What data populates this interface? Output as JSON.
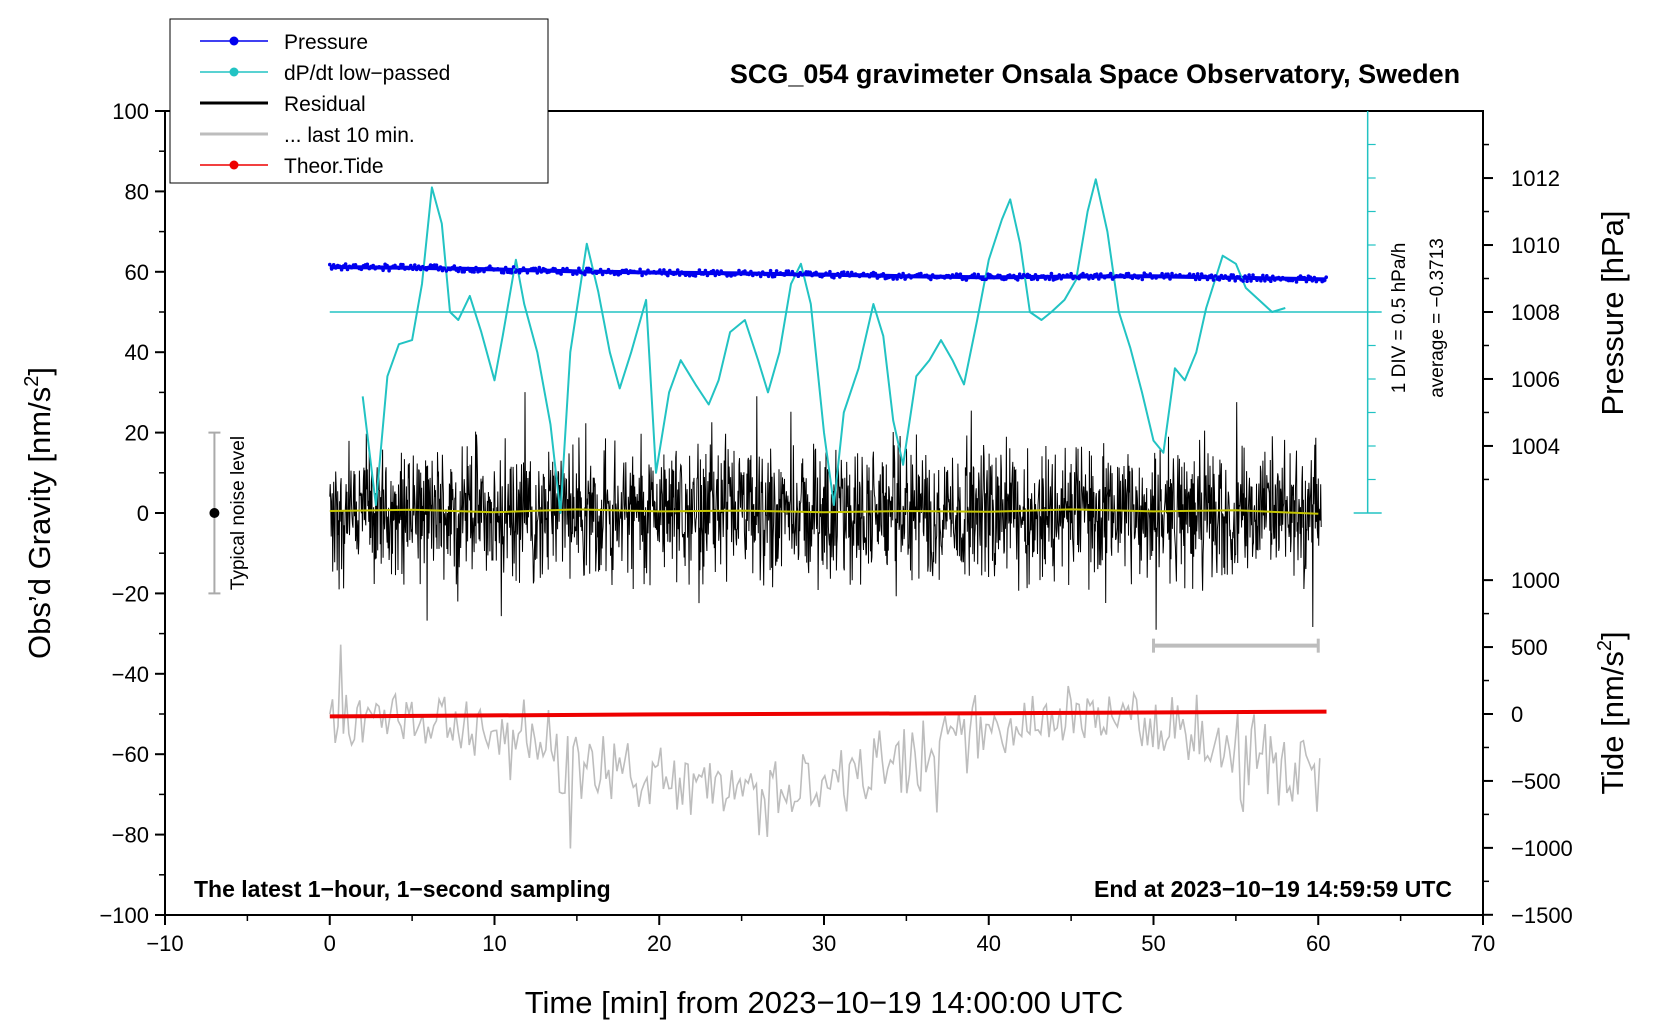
{
  "chart_data": {
    "type": "line",
    "title": "SCG_054 gravimeter Onsala Space Observatory, Sweden",
    "xlabel": "Time [min] from 2023−10−19 14:00:00 UTC",
    "ylabel_left": "Obs’d Gravity [nm/s²]",
    "ylabel_left_base": "Obs’d Gravity [nm/s",
    "ylabel_left_exp": "2",
    "ylabel_left_close": "]",
    "ylabel_right_pressure": "Pressure [hPa]",
    "ylabel_right_tide": "Tide [nm/s²]",
    "ylabel_right_tide_base": "Tide [nm/s",
    "ylabel_right_tide_exp": "2",
    "ylabel_right_tide_close": "]",
    "xlim": [
      -10,
      70
    ],
    "ylim_left": [
      -100,
      100
    ],
    "x_ticks": [
      "−10",
      "0",
      "10",
      "20",
      "30",
      "40",
      "50",
      "60",
      "70"
    ],
    "x_tick_values": [
      -10,
      0,
      10,
      20,
      30,
      40,
      50,
      60,
      70
    ],
    "y_ticks": [
      "100",
      "80",
      "60",
      "40",
      "20",
      "0",
      "−20",
      "−40",
      "−60",
      "−80",
      "−100"
    ],
    "y_tick_values": [
      100,
      80,
      60,
      40,
      20,
      0,
      -20,
      -40,
      -60,
      -80,
      -100
    ],
    "pressure_ticks": [
      "1012",
      "1010",
      "1008",
      "1006",
      "1004"
    ],
    "pressure_tick_values": [
      1012,
      1010,
      1008,
      1006,
      1004
    ],
    "pressure_axis": {
      "ref_hpa": 1008,
      "ref_left": 50,
      "left_per_hpa": 8.33
    },
    "tide_ticks": [
      "1000",
      "500",
      "0",
      "−500",
      "−1000",
      "−1500"
    ],
    "tide_tick_values": [
      1000,
      500,
      0,
      -500,
      -1000,
      -1500
    ],
    "tide_axis": {
      "ref_tide": 0,
      "ref_left": -50,
      "left_per_unit": 0.0333
    },
    "legend": [
      {
        "label": "Pressure",
        "color": "#0000ee",
        "marker": true
      },
      {
        "label": "dP/dt low−passed",
        "color": "#22c3c3",
        "marker": true
      },
      {
        "label": "Residual",
        "color": "#000000",
        "marker": false
      },
      {
        "label": "... last 10 min.",
        "color": "#bdbdbd",
        "marker": false
      },
      {
        "label": "Theor.Tide",
        "color": "#ee0000",
        "marker": true
      }
    ],
    "annotations": {
      "noise_label": "Typical noise level",
      "noise_range": [
        -20,
        20
      ],
      "dpdt_scale": "1 DIV = 0.5 hPa/h",
      "dpdt_average": "average = −0.3713",
      "bottom_left": "The latest 1−hour, 1−second sampling",
      "bottom_right": "End at 2023−10−19 14:59:59 UTC",
      "last10_bar_x": [
        50,
        60
      ]
    },
    "series": [
      {
        "name": "Pressure",
        "color": "#0000ee",
        "points": [
          [
            0,
            61.2
          ],
          [
            5,
            61.0
          ],
          [
            10,
            60.6
          ],
          [
            15,
            60.1
          ],
          [
            20,
            59.8
          ],
          [
            25,
            59.6
          ],
          [
            30,
            59.3
          ],
          [
            35,
            58.9
          ],
          [
            40,
            58.6
          ],
          [
            45,
            58.8
          ],
          [
            50,
            58.9
          ],
          [
            55,
            58.5
          ],
          [
            60.5,
            58.1
          ]
        ]
      },
      {
        "name": "dP/dt low-passed",
        "color": "#22c3c3",
        "points": [
          [
            2,
            29
          ],
          [
            2.8,
            2
          ],
          [
            3.5,
            34
          ],
          [
            4.2,
            42
          ],
          [
            5,
            43
          ],
          [
            5.6,
            57
          ],
          [
            6.2,
            81
          ],
          [
            6.8,
            72
          ],
          [
            7.3,
            50
          ],
          [
            7.8,
            48
          ],
          [
            8.5,
            54
          ],
          [
            9.2,
            45
          ],
          [
            10,
            33
          ],
          [
            10.5,
            44
          ],
          [
            11.3,
            63
          ],
          [
            11.8,
            52
          ],
          [
            12.6,
            40
          ],
          [
            13.4,
            22
          ],
          [
            14,
            0
          ],
          [
            14.6,
            40
          ],
          [
            15.6,
            67
          ],
          [
            16.3,
            55
          ],
          [
            17,
            40
          ],
          [
            17.6,
            31
          ],
          [
            18.3,
            40
          ],
          [
            19.2,
            53
          ],
          [
            19.8,
            10
          ],
          [
            20.6,
            30
          ],
          [
            21.3,
            38
          ],
          [
            22.2,
            32
          ],
          [
            23,
            27
          ],
          [
            23.6,
            33
          ],
          [
            24.3,
            45
          ],
          [
            25.2,
            48
          ],
          [
            26,
            38
          ],
          [
            26.6,
            30
          ],
          [
            27.3,
            40
          ],
          [
            28,
            57
          ],
          [
            28.6,
            62
          ],
          [
            29.2,
            52
          ],
          [
            30,
            20
          ],
          [
            30.6,
            2
          ],
          [
            31.2,
            25
          ],
          [
            32.1,
            36
          ],
          [
            33,
            52
          ],
          [
            33.6,
            44
          ],
          [
            34.2,
            23
          ],
          [
            34.8,
            12
          ],
          [
            35.6,
            34
          ],
          [
            36.4,
            38
          ],
          [
            37.1,
            43
          ],
          [
            37.8,
            38
          ],
          [
            38.5,
            32
          ],
          [
            39.3,
            48
          ],
          [
            40,
            63
          ],
          [
            40.8,
            73
          ],
          [
            41.3,
            78
          ],
          [
            41.9,
            67
          ],
          [
            42.5,
            50
          ],
          [
            43.2,
            48
          ],
          [
            43.8,
            50
          ],
          [
            44.6,
            53
          ],
          [
            45.3,
            58
          ],
          [
            46,
            75
          ],
          [
            46.5,
            83
          ],
          [
            47.2,
            70
          ],
          [
            47.9,
            50
          ],
          [
            48.6,
            41
          ],
          [
            49.3,
            30
          ],
          [
            50,
            18
          ],
          [
            50.6,
            15
          ],
          [
            51.3,
            36
          ],
          [
            51.9,
            33
          ],
          [
            52.6,
            40
          ],
          [
            53.2,
            51
          ],
          [
            54.2,
            64
          ],
          [
            55,
            62
          ],
          [
            55.6,
            56
          ],
          [
            56.4,
            53
          ],
          [
            57.2,
            50
          ],
          [
            58,
            51
          ]
        ]
      },
      {
        "name": "Residual running mean",
        "color": "#c4c400",
        "points": [
          [
            0,
            0.5
          ],
          [
            5,
            0.8
          ],
          [
            10,
            0.2
          ],
          [
            15,
            0.9
          ],
          [
            20,
            0.4
          ],
          [
            25,
            0.6
          ],
          [
            30,
            0.2
          ],
          [
            35,
            0.5
          ],
          [
            40,
            0.3
          ],
          [
            45,
            0.9
          ],
          [
            50,
            0.4
          ],
          [
            55,
            0.7
          ],
          [
            60,
            -0.2
          ]
        ]
      },
      {
        "name": "Theor.Tide",
        "color": "#ee0000",
        "points": [
          [
            0,
            -50.6
          ],
          [
            20,
            -50.1
          ],
          [
            40,
            -49.8
          ],
          [
            60.5,
            -49.4
          ]
        ]
      }
    ],
    "residual_envelope": {
      "x_range": [
        0,
        60.2
      ],
      "typical_amplitude": 16,
      "max_amplitude": 36,
      "min_value": -40
    },
    "last10_envelope": {
      "x_range": [
        0,
        60.2
      ],
      "center": -60,
      "typical_amplitude": 12,
      "max_amplitude": 37
    }
  }
}
